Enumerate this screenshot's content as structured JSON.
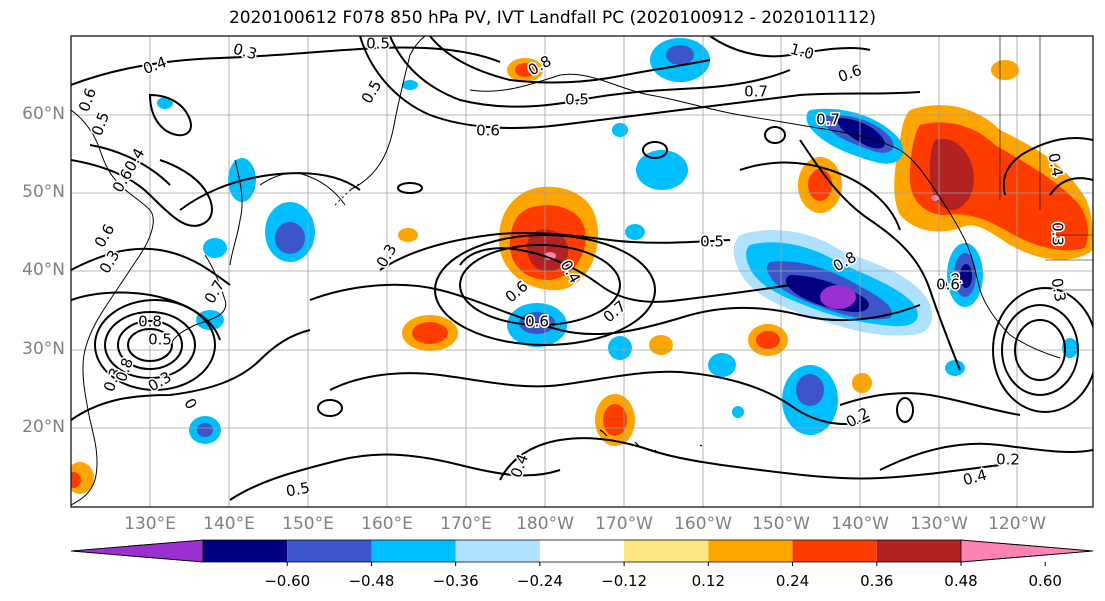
{
  "title": "2020100612 F078 850 hPa PV, IVT Landfall PC (2020100912 - 2020101112)",
  "lat_labels": [
    "60°N",
    "50°N",
    "40°N",
    "30°N",
    "20°N"
  ],
  "lon_labels": [
    "130°E",
    "140°E",
    "150°E",
    "160°E",
    "170°E",
    "180°W",
    "170°W",
    "160°W",
    "150°W",
    "140°W",
    "130°W",
    "120°W"
  ],
  "colorbar": {
    "ticks": [
      "−0.60",
      "−0.48",
      "−0.36",
      "−0.24",
      "−0.12",
      "0.12",
      "0.24",
      "0.36",
      "0.48",
      "0.60"
    ],
    "colors": [
      "#9b30d0",
      "#000080",
      "#3a56c8",
      "#00bfff",
      "#b0e2ff",
      "#ffffff",
      "#ffe680",
      "#ffa500",
      "#ff3c00",
      "#b22222",
      "#ff82b4"
    ]
  },
  "contour_labels": [
    "0.3",
    "0.5",
    "1.0",
    "0.7",
    "0.4",
    "0.6",
    "0.5",
    "0.6",
    "0.8",
    "0.5",
    "0.6",
    "0.7",
    "0.5",
    "0.4",
    "0.6",
    "0.5",
    "0.8",
    "0.6",
    "0.3",
    "0.4",
    "0.6",
    "0.3",
    "0.7",
    "0.6",
    "0.7",
    "0.5",
    "0.4",
    "0.2",
    "0.2",
    "0.4",
    "0.3",
    "0.2",
    "0.8",
    "0.3",
    "0.5",
    "0.6",
    "0.3",
    "0.8",
    "0.3",
    "0",
    "0.4"
  ],
  "colors": {
    "contour": "#000000",
    "grid": "#a0a0a0",
    "coast": "#000000"
  }
}
